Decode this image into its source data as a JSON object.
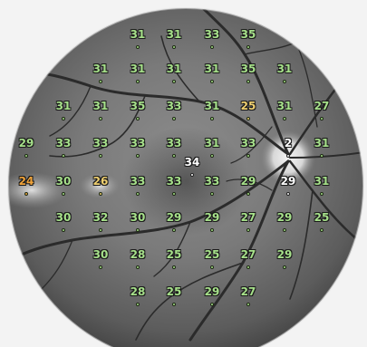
{
  "viewer": {
    "background_color": "#f3f3f3",
    "status_colors": {
      "normal": "#a6e08a",
      "moderate": "#f0d070",
      "reduced": "#f0a33a",
      "center": "#ffffff",
      "optic_disc": "#ffffff"
    }
  },
  "sensitivity_points": [
    {
      "value": "31",
      "status": "normal"
    },
    {
      "value": "31",
      "status": "normal"
    },
    {
      "value": "33",
      "status": "normal"
    },
    {
      "value": "35",
      "status": "normal"
    },
    {
      "value": "31",
      "status": "normal"
    },
    {
      "value": "31",
      "status": "normal"
    },
    {
      "value": "31",
      "status": "normal"
    },
    {
      "value": "31",
      "status": "normal"
    },
    {
      "value": "35",
      "status": "normal"
    },
    {
      "value": "31",
      "status": "normal"
    },
    {
      "value": "31",
      "status": "normal"
    },
    {
      "value": "31",
      "status": "normal"
    },
    {
      "value": "35",
      "status": "normal"
    },
    {
      "value": "33",
      "status": "normal"
    },
    {
      "value": "31",
      "status": "normal"
    },
    {
      "value": "25",
      "status": "moderate"
    },
    {
      "value": "31",
      "status": "normal"
    },
    {
      "value": "27",
      "status": "normal"
    },
    {
      "value": "29",
      "status": "normal"
    },
    {
      "value": "33",
      "status": "normal"
    },
    {
      "value": "33",
      "status": "normal"
    },
    {
      "value": "33",
      "status": "normal"
    },
    {
      "value": "33",
      "status": "normal"
    },
    {
      "value": "31",
      "status": "normal"
    },
    {
      "value": "33",
      "status": "normal"
    },
    {
      "value": "2",
      "status": "optic_disc"
    },
    {
      "value": "31",
      "status": "normal"
    },
    {
      "value": "34",
      "status": "center"
    },
    {
      "value": "24",
      "status": "reduced"
    },
    {
      "value": "30",
      "status": "normal"
    },
    {
      "value": "26",
      "status": "moderate"
    },
    {
      "value": "33",
      "status": "normal"
    },
    {
      "value": "33",
      "status": "normal"
    },
    {
      "value": "33",
      "status": "normal"
    },
    {
      "value": "29",
      "status": "normal"
    },
    {
      "value": "29",
      "status": "optic_disc"
    },
    {
      "value": "31",
      "status": "normal"
    },
    {
      "value": "30",
      "status": "normal"
    },
    {
      "value": "32",
      "status": "normal"
    },
    {
      "value": "30",
      "status": "normal"
    },
    {
      "value": "29",
      "status": "normal"
    },
    {
      "value": "29",
      "status": "normal"
    },
    {
      "value": "27",
      "status": "normal"
    },
    {
      "value": "29",
      "status": "normal"
    },
    {
      "value": "25",
      "status": "normal"
    },
    {
      "value": "30",
      "status": "normal"
    },
    {
      "value": "28",
      "status": "normal"
    },
    {
      "value": "25",
      "status": "normal"
    },
    {
      "value": "25",
      "status": "normal"
    },
    {
      "value": "27",
      "status": "normal"
    },
    {
      "value": "29",
      "status": "normal"
    },
    {
      "value": "28",
      "status": "normal"
    },
    {
      "value": "25",
      "status": "normal"
    },
    {
      "value": "29",
      "status": "normal"
    },
    {
      "value": "27",
      "status": "normal"
    }
  ]
}
